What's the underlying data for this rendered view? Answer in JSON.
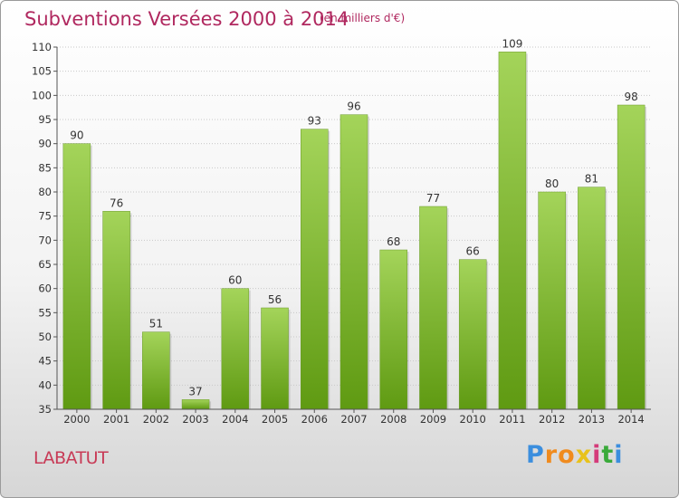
{
  "title": "Subventions Versées 2000 à 2014",
  "unit_note": "(en milliers d'€)",
  "commune": "LABATUT",
  "brand": {
    "letters": [
      "P",
      "r",
      "o",
      "x",
      "i",
      "t",
      "i"
    ],
    "colors": [
      "#3b8ede",
      "#f08b1e",
      "#f08b1e",
      "#e8c21a",
      "#d43b7a",
      "#3aaa3a",
      "#3b8ede"
    ]
  },
  "colors": {
    "bar_top": "#a4d45a",
    "bar_bottom": "#5f9a12",
    "title": "#b0285f",
    "grid": "#c8c8c8"
  },
  "chart_data": {
    "type": "bar",
    "categories": [
      "2000",
      "2001",
      "2002",
      "2003",
      "2004",
      "2005",
      "2006",
      "2007",
      "2008",
      "2009",
      "2010",
      "2011",
      "2012",
      "2013",
      "2014"
    ],
    "values": [
      90,
      76,
      51,
      37,
      60,
      56,
      93,
      96,
      68,
      77,
      66,
      109,
      80,
      81,
      98
    ],
    "ylim": [
      35,
      110
    ],
    "yticks": [
      35,
      40,
      45,
      50,
      55,
      60,
      65,
      70,
      75,
      80,
      85,
      90,
      95,
      100,
      105,
      110
    ],
    "grid": true
  }
}
